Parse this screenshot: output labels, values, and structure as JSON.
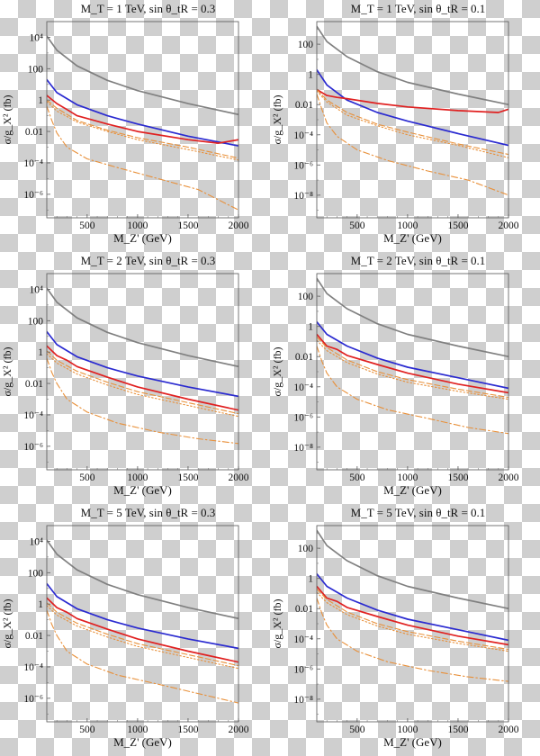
{
  "colors": {
    "gray": "#808080",
    "blue": "#2a2ad0",
    "red": "#e02020",
    "orange": "#e8903a"
  },
  "chart_data": [
    {
      "type": "line",
      "title": "M_T = 1 TeV, sin θ_tR = 0.3",
      "xlabel": "M_Z' (GeV)",
      "ylabel": "σ/g_X² (fb)",
      "xlim": [
        100,
        2000
      ],
      "ylim_log10": [
        -7.5,
        5
      ],
      "yscale": "log",
      "xticks": [
        500,
        1000,
        1500,
        2000
      ],
      "yticks": [
        {
          "exp": 4,
          "label": "10⁴"
        },
        {
          "exp": 2,
          "label": "100"
        },
        {
          "exp": 0,
          "label": "1"
        },
        {
          "exp": -2,
          "label": "0.01"
        },
        {
          "exp": -4,
          "label": "10⁻⁴"
        },
        {
          "exp": -6,
          "label": "10⁻⁶"
        }
      ],
      "series": [
        {
          "color": "gray",
          "style": "solid",
          "x": [
            100,
            200,
            400,
            700,
            1000,
            1500,
            2000
          ],
          "y": [
            12000,
            1500,
            150,
            18,
            4,
            0.6,
            0.12
          ]
        },
        {
          "color": "blue",
          "style": "solid",
          "x": [
            100,
            200,
            400,
            700,
            1000,
            1500,
            2000
          ],
          "y": [
            20,
            3,
            0.5,
            0.1,
            0.03,
            0.005,
            0.0012
          ]
        },
        {
          "color": "red",
          "style": "solid",
          "x": [
            100,
            200,
            300,
            400,
            700,
            1000,
            1500,
            1800,
            2000
          ],
          "y": [
            2,
            0.6,
            0.25,
            0.1,
            0.03,
            0.01,
            0.003,
            0.0018,
            0.003
          ]
        },
        {
          "color": "orange",
          "style": "dashed",
          "x": [
            100,
            200,
            400,
            700,
            1000,
            1500,
            2000
          ],
          "y": [
            1,
            0.3,
            0.05,
            0.012,
            0.004,
            0.001,
            0.0002
          ]
        },
        {
          "color": "orange",
          "style": "dotted",
          "x": [
            100,
            200,
            400,
            700,
            1000,
            1500,
            2000
          ],
          "y": [
            0.8,
            0.2,
            0.04,
            0.01,
            0.003,
            0.0007,
            0.00015
          ]
        },
        {
          "color": "orange",
          "style": "dashdot",
          "x": [
            100,
            150,
            200,
            300,
            500,
            800,
            1200,
            1600,
            2000
          ],
          "y": [
            0.4,
            0.05,
            0.008,
            0.001,
            0.00018,
            5e-05,
            1e-05,
            2e-06,
            1e-07
          ]
        }
      ]
    },
    {
      "type": "line",
      "title": "M_T = 1 TeV, sin θ_tR = 0.1",
      "xlabel": "M_Z' (GeV)",
      "ylabel": "σ/g_X² (fb)",
      "xlim": [
        100,
        2000
      ],
      "ylim_log10": [
        -9.5,
        3.5
      ],
      "yscale": "log",
      "xticks": [
        500,
        1000,
        1500,
        2000
      ],
      "yticks": [
        {
          "exp": 2,
          "label": "100"
        },
        {
          "exp": 0,
          "label": "1"
        },
        {
          "exp": -2,
          "label": "0.01"
        },
        {
          "exp": -4,
          "label": "10⁻⁴"
        },
        {
          "exp": -6,
          "label": "10⁻⁶"
        },
        {
          "exp": -8,
          "label": "10⁻⁸"
        }
      ],
      "series": [
        {
          "color": "gray",
          "style": "solid",
          "x": [
            100,
            200,
            400,
            700,
            1000,
            1500,
            2000
          ],
          "y": [
            1500,
            150,
            15,
            1.5,
            0.3,
            0.05,
            0.01
          ]
        },
        {
          "color": "blue",
          "style": "solid",
          "x": [
            100,
            200,
            400,
            700,
            1000,
            1500,
            2000
          ],
          "y": [
            2,
            0.2,
            0.02,
            0.003,
            0.0008,
            0.00012,
            2e-05
          ]
        },
        {
          "color": "red",
          "style": "solid",
          "x": [
            100,
            200,
            300,
            400,
            700,
            1000,
            1500,
            1900,
            2000
          ],
          "y": [
            0.1,
            0.04,
            0.03,
            0.025,
            0.012,
            0.007,
            0.004,
            0.003,
            0.005
          ]
        },
        {
          "color": "orange",
          "style": "dashed",
          "x": [
            100,
            200,
            400,
            700,
            1000,
            1500,
            2000
          ],
          "y": [
            0.1,
            0.02,
            0.003,
            0.0005,
            0.00015,
            2.5e-05,
            5e-06
          ]
        },
        {
          "color": "orange",
          "style": "dotted",
          "x": [
            100,
            200,
            400,
            700,
            1000,
            1500,
            2000
          ],
          "y": [
            0.08,
            0.015,
            0.002,
            0.0004,
            0.0001,
            2e-05,
            3e-06
          ]
        },
        {
          "color": "orange",
          "style": "dashdot",
          "x": [
            100,
            150,
            200,
            300,
            500,
            800,
            1200,
            1600,
            2000
          ],
          "y": [
            0.05,
            0.005,
            0.0006,
            8e-05,
            1e-05,
            2e-06,
            4e-07,
            1e-07,
            1e-08
          ]
        }
      ]
    },
    {
      "type": "line",
      "title": "M_T = 2 TeV, sin θ_tR = 0.3",
      "xlabel": "M_Z' (GeV)",
      "ylabel": "σ/g_X² (fb)",
      "xlim": [
        100,
        2000
      ],
      "ylim_log10": [
        -7.5,
        5
      ],
      "yscale": "log",
      "xticks": [
        500,
        1000,
        1500,
        2000
      ],
      "yticks": [
        {
          "exp": 4,
          "label": "10⁴"
        },
        {
          "exp": 2,
          "label": "100"
        },
        {
          "exp": 0,
          "label": "1"
        },
        {
          "exp": -2,
          "label": "0.01"
        },
        {
          "exp": -4,
          "label": "10⁻⁴"
        },
        {
          "exp": -6,
          "label": "10⁻⁶"
        }
      ],
      "series": [
        {
          "color": "gray",
          "style": "solid",
          "x": [
            100,
            200,
            400,
            700,
            1000,
            1500,
            2000
          ],
          "y": [
            12000,
            1500,
            150,
            18,
            4,
            0.6,
            0.12
          ]
        },
        {
          "color": "blue",
          "style": "solid",
          "x": [
            100,
            200,
            400,
            700,
            1000,
            1500,
            2000
          ],
          "y": [
            20,
            3,
            0.5,
            0.1,
            0.03,
            0.006,
            0.0015
          ]
        },
        {
          "color": "red",
          "style": "solid",
          "x": [
            100,
            200,
            300,
            400,
            700,
            1000,
            1500,
            2000
          ],
          "y": [
            2.5,
            0.6,
            0.3,
            0.12,
            0.025,
            0.006,
            0.001,
            0.0002
          ]
        },
        {
          "color": "orange",
          "style": "dashed",
          "x": [
            100,
            200,
            400,
            700,
            1000,
            1500,
            2000
          ],
          "y": [
            1.2,
            0.3,
            0.06,
            0.012,
            0.003,
            0.0006,
            0.00012
          ]
        },
        {
          "color": "orange",
          "style": "dotted",
          "x": [
            100,
            200,
            400,
            700,
            1000,
            1500,
            2000
          ],
          "y": [
            0.8,
            0.2,
            0.04,
            0.008,
            0.002,
            0.0004,
            8e-05
          ]
        },
        {
          "color": "orange",
          "style": "dashdot",
          "x": [
            100,
            150,
            200,
            300,
            500,
            800,
            1200,
            1600,
            2000
          ],
          "y": [
            0.4,
            0.05,
            0.01,
            0.001,
            0.00015,
            3e-05,
            8e-06,
            3e-06,
            1.5e-06
          ]
        }
      ]
    },
    {
      "type": "line",
      "title": "M_T = 2 TeV, sin θ_tR = 0.1",
      "xlabel": "M_Z' (GeV)",
      "ylabel": "σ/g_X² (fb)",
      "xlim": [
        100,
        2000
      ],
      "ylim_log10": [
        -9.5,
        3.5
      ],
      "yscale": "log",
      "xticks": [
        500,
        1000,
        1500,
        2000
      ],
      "yticks": [
        {
          "exp": 2,
          "label": "100"
        },
        {
          "exp": 0,
          "label": "1"
        },
        {
          "exp": -2,
          "label": "0.01"
        },
        {
          "exp": -4,
          "label": "10⁻⁴"
        },
        {
          "exp": -6,
          "label": "10⁻⁶"
        },
        {
          "exp": -8,
          "label": "10⁻⁸"
        }
      ],
      "series": [
        {
          "color": "gray",
          "style": "solid",
          "x": [
            100,
            200,
            400,
            700,
            1000,
            1500,
            2000
          ],
          "y": [
            1500,
            150,
            15,
            1.5,
            0.3,
            0.05,
            0.01
          ]
        },
        {
          "color": "blue",
          "style": "solid",
          "x": [
            100,
            200,
            400,
            700,
            1000,
            1500,
            2000
          ],
          "y": [
            2,
            0.3,
            0.05,
            0.008,
            0.002,
            0.0004,
            8e-05
          ]
        },
        {
          "color": "red",
          "style": "solid",
          "x": [
            100,
            200,
            300,
            400,
            700,
            1000,
            1500,
            2000
          ],
          "y": [
            0.3,
            0.05,
            0.03,
            0.012,
            0.003,
            0.0008,
            0.00015,
            4e-05
          ]
        },
        {
          "color": "orange",
          "style": "dashed",
          "x": [
            100,
            200,
            400,
            700,
            1000,
            1500,
            2000
          ],
          "y": [
            0.2,
            0.04,
            0.006,
            0.001,
            0.0003,
            7e-05,
            2e-05
          ]
        },
        {
          "color": "orange",
          "style": "dotted",
          "x": [
            100,
            200,
            400,
            700,
            1000,
            1500,
            2000
          ],
          "y": [
            0.12,
            0.025,
            0.004,
            0.0007,
            0.0002,
            5e-05,
            1.5e-05
          ]
        },
        {
          "color": "orange",
          "style": "dashdot",
          "x": [
            100,
            150,
            200,
            300,
            500,
            800,
            1200,
            1600,
            2000
          ],
          "y": [
            0.05,
            0.005,
            0.0008,
            0.0001,
            1.5e-05,
            3e-06,
            8e-07,
            2e-07,
            8e-08
          ]
        }
      ]
    },
    {
      "type": "line",
      "title": "M_T = 5 TeV, sin θ_tR = 0.3",
      "xlabel": "M_Z' (GeV)",
      "ylabel": "σ/g_X² (fb)",
      "xlim": [
        100,
        2000
      ],
      "ylim_log10": [
        -7.5,
        5
      ],
      "yscale": "log",
      "xticks": [
        500,
        1000,
        1500,
        2000
      ],
      "yticks": [
        {
          "exp": 4,
          "label": "10⁴"
        },
        {
          "exp": 2,
          "label": "100"
        },
        {
          "exp": 0,
          "label": "1"
        },
        {
          "exp": -2,
          "label": "0.01"
        },
        {
          "exp": -4,
          "label": "10⁻⁴"
        },
        {
          "exp": -6,
          "label": "10⁻⁶"
        }
      ],
      "series": [
        {
          "color": "gray",
          "style": "solid",
          "x": [
            100,
            200,
            400,
            700,
            1000,
            1500,
            2000
          ],
          "y": [
            12000,
            1500,
            150,
            18,
            4,
            0.6,
            0.12
          ]
        },
        {
          "color": "blue",
          "style": "solid",
          "x": [
            100,
            200,
            400,
            700,
            1000,
            1500,
            2000
          ],
          "y": [
            20,
            3,
            0.5,
            0.1,
            0.03,
            0.006,
            0.0015
          ]
        },
        {
          "color": "red",
          "style": "solid",
          "x": [
            100,
            200,
            300,
            400,
            700,
            1000,
            1500,
            2000
          ],
          "y": [
            2.5,
            0.6,
            0.3,
            0.12,
            0.025,
            0.006,
            0.001,
            0.0002
          ]
        },
        {
          "color": "orange",
          "style": "dashed",
          "x": [
            100,
            200,
            400,
            700,
            1000,
            1500,
            2000
          ],
          "y": [
            1.2,
            0.3,
            0.06,
            0.012,
            0.003,
            0.0006,
            0.00012
          ]
        },
        {
          "color": "orange",
          "style": "dotted",
          "x": [
            100,
            200,
            400,
            700,
            1000,
            1500,
            2000
          ],
          "y": [
            0.8,
            0.2,
            0.04,
            0.008,
            0.002,
            0.0004,
            8e-05
          ]
        },
        {
          "color": "orange",
          "style": "dashdot",
          "x": [
            100,
            150,
            200,
            300,
            500,
            800,
            1200,
            1600,
            2000
          ],
          "y": [
            0.4,
            0.05,
            0.01,
            0.001,
            0.00015,
            3e-05,
            8e-06,
            2e-06,
            5e-07
          ]
        }
      ]
    },
    {
      "type": "line",
      "title": "M_T = 5 TeV, sin θ_tR = 0.1",
      "xlabel": "M_Z' (GeV)",
      "ylabel": "σ/g_X² (fb)",
      "xlim": [
        100,
        2000
      ],
      "ylim_log10": [
        -9.5,
        3.5
      ],
      "yscale": "log",
      "xticks": [
        500,
        1000,
        1500,
        2000
      ],
      "yticks": [
        {
          "exp": 2,
          "label": "100"
        },
        {
          "exp": 0,
          "label": "1"
        },
        {
          "exp": -2,
          "label": "0.01"
        },
        {
          "exp": -4,
          "label": "10⁻⁴"
        },
        {
          "exp": -6,
          "label": "10⁻⁶"
        },
        {
          "exp": -8,
          "label": "10⁻⁸"
        }
      ],
      "series": [
        {
          "color": "gray",
          "style": "solid",
          "x": [
            100,
            200,
            400,
            700,
            1000,
            1500,
            2000
          ],
          "y": [
            1500,
            150,
            15,
            1.5,
            0.3,
            0.05,
            0.01
          ]
        },
        {
          "color": "blue",
          "style": "solid",
          "x": [
            100,
            200,
            400,
            700,
            1000,
            1500,
            2000
          ],
          "y": [
            2,
            0.3,
            0.05,
            0.008,
            0.002,
            0.0004,
            8e-05
          ]
        },
        {
          "color": "red",
          "style": "solid",
          "x": [
            100,
            200,
            300,
            400,
            700,
            1000,
            1500,
            2000
          ],
          "y": [
            0.3,
            0.05,
            0.03,
            0.012,
            0.003,
            0.0008,
            0.00015,
            4e-05
          ]
        },
        {
          "color": "orange",
          "style": "dashed",
          "x": [
            100,
            200,
            400,
            700,
            1000,
            1500,
            2000
          ],
          "y": [
            0.2,
            0.04,
            0.006,
            0.001,
            0.0003,
            7e-05,
            2e-05
          ]
        },
        {
          "color": "orange",
          "style": "dotted",
          "x": [
            100,
            200,
            400,
            700,
            1000,
            1500,
            2000
          ],
          "y": [
            0.12,
            0.025,
            0.004,
            0.0007,
            0.0002,
            5e-05,
            1.5e-05
          ]
        },
        {
          "color": "orange",
          "style": "dashdot",
          "x": [
            100,
            150,
            200,
            300,
            500,
            800,
            1200,
            1600,
            2000
          ],
          "y": [
            0.05,
            0.005,
            0.0008,
            0.0001,
            1.5e-05,
            3e-06,
            8e-07,
            3e-07,
            1.5e-07
          ]
        }
      ]
    }
  ]
}
